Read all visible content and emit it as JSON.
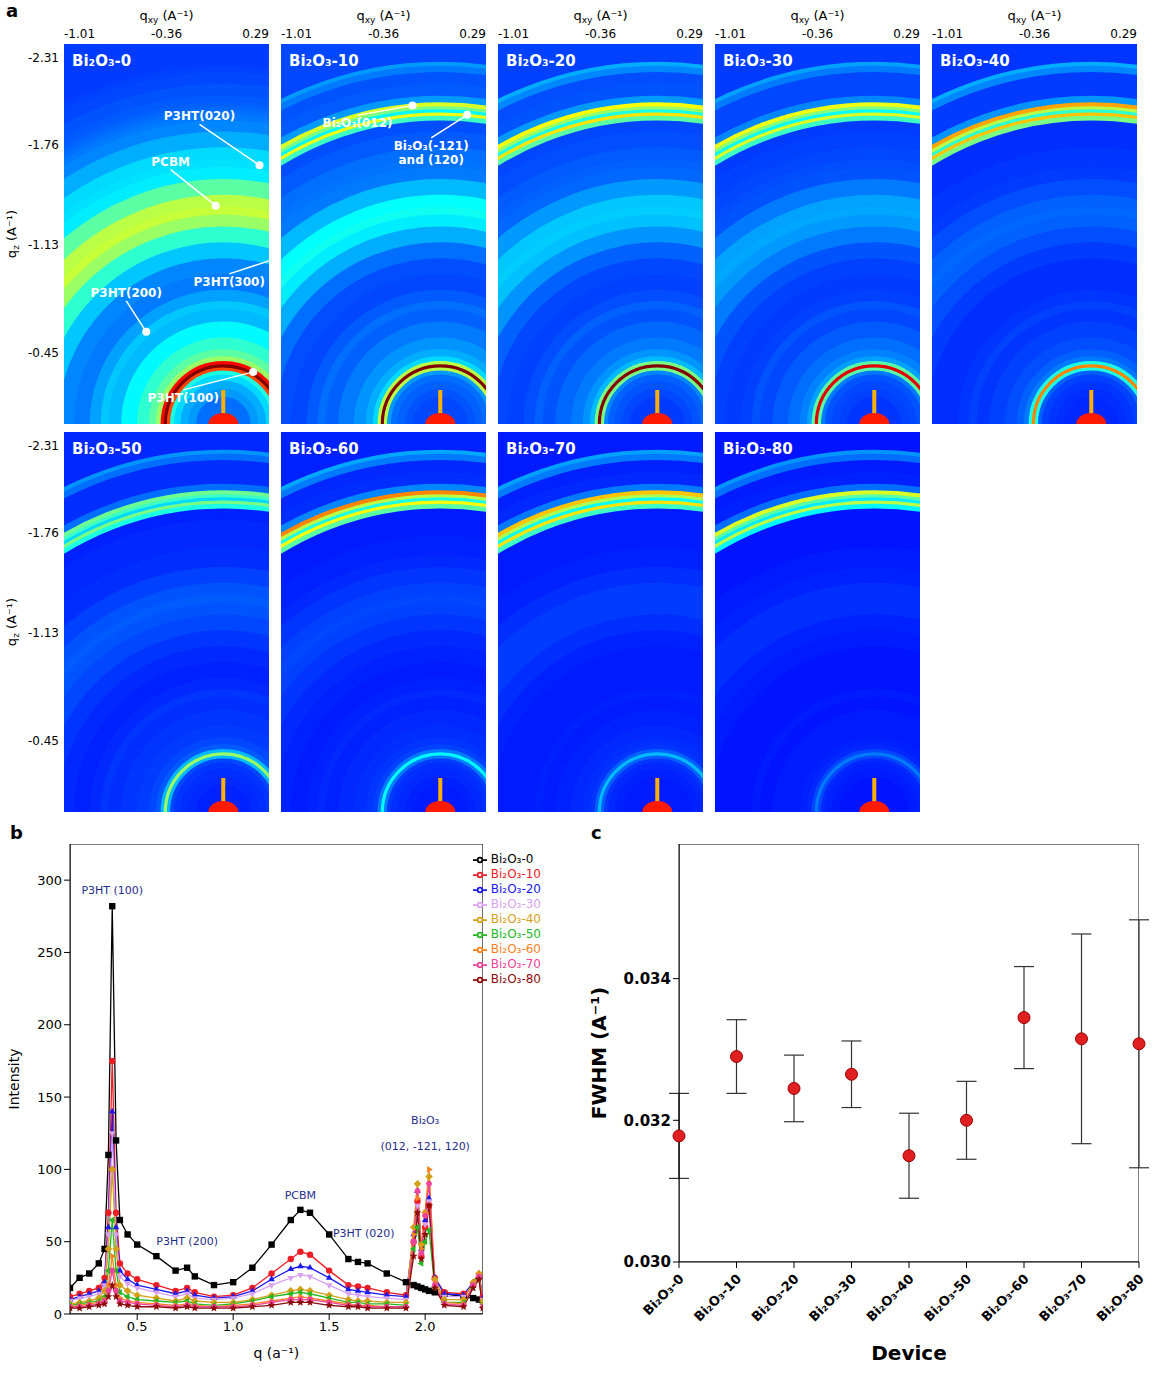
{
  "chart_data": [
    {
      "type": "image",
      "panel_label": "a",
      "panels": [
        "Bi₂O₃-0",
        "Bi₂O₃-10",
        "Bi₂O₃-20",
        "Bi₂O₃-30",
        "Bi₂O₃-40",
        "Bi₂O₃-50",
        "Bi₂O₃-60",
        "Bi₂O₃-70",
        "Bi₂O₃-80"
      ],
      "x_title": {
        "text": "q",
        "sub": "xy",
        "rest": " (A⁻¹)"
      },
      "y_title": {
        "text": "q",
        "sub": "z",
        "rest": " (A⁻¹)"
      },
      "xlim": [
        -1.01,
        0.29
      ],
      "xticks": [
        -1.01,
        -0.36,
        0.29
      ],
      "ylim": [
        -2.4,
        0
      ],
      "yticks": [
        -2.31,
        -1.76,
        -1.13,
        -0.45
      ],
      "annotations": [
        {
          "panel": "Bi₂O₃-0",
          "text": "P3HT(020)",
          "q": 1.65
        },
        {
          "panel": "Bi₂O₃-0",
          "text": "PCBM",
          "q": 1.38
        },
        {
          "panel": "Bi₂O₃-0",
          "text": "P3HT(300)",
          "q": 1.13
        },
        {
          "panel": "Bi₂O₃-0",
          "text": "P3HT(200)",
          "q": 0.76
        },
        {
          "panel": "Bi₂O₃-0",
          "text": "P3HT(100)",
          "q": 0.38
        },
        {
          "panel": "Bi₂O₃-10",
          "text": "Bi₂O₃(012)",
          "q": 2.02
        },
        {
          "panel": "Bi₂O₃-10",
          "text": "Bi₂O₃(-121) and (120)",
          "q": 1.96
        }
      ]
    },
    {
      "type": "line",
      "panel_label": "b",
      "x_label": "q (a⁻¹)",
      "y_label": "Intensity",
      "x": [
        0.15,
        0.2,
        0.25,
        0.3,
        0.33,
        0.35,
        0.37,
        0.39,
        0.41,
        0.45,
        0.5,
        0.6,
        0.7,
        0.76,
        0.8,
        0.9,
        1.0,
        1.1,
        1.2,
        1.3,
        1.35,
        1.4,
        1.5,
        1.6,
        1.65,
        1.7,
        1.8,
        1.9,
        1.94,
        1.96,
        1.98,
        2.0,
        2.02,
        2.05,
        2.1,
        2.2,
        2.25,
        2.28,
        2.3
      ],
      "series": [
        {
          "name": "Bi₂O₃-0",
          "color": "#000000",
          "marker": "square",
          "values": [
            18,
            25,
            28,
            35,
            45,
            110,
            282,
            120,
            65,
            55,
            48,
            40,
            30,
            32,
            26,
            20,
            22,
            32,
            48,
            65,
            72,
            70,
            55,
            38,
            36,
            35,
            28,
            22,
            20,
            19,
            18,
            17,
            16,
            15,
            14,
            12,
            11,
            10,
            10
          ]
        },
        {
          "name": "Bi₂O₃-10",
          "color": "#ee1c25",
          "marker": "circle",
          "values": [
            12,
            14,
            16,
            18,
            25,
            70,
            175,
            70,
            35,
            28,
            24,
            20,
            16,
            18,
            15,
            12,
            13,
            18,
            28,
            38,
            43,
            41,
            30,
            20,
            19,
            18,
            15,
            13,
            50,
            78,
            40,
            60,
            75,
            25,
            15,
            14,
            20,
            25,
            12
          ]
        },
        {
          "name": "Bi₂O₃-20",
          "color": "#1a1aee",
          "marker": "triangle",
          "values": [
            10,
            12,
            14,
            16,
            22,
            60,
            140,
            60,
            30,
            24,
            20,
            17,
            14,
            16,
            13,
            11,
            12,
            16,
            24,
            31,
            33,
            32,
            25,
            17,
            16,
            15,
            13,
            12,
            55,
            85,
            45,
            65,
            80,
            25,
            14,
            13,
            22,
            28,
            11
          ]
        },
        {
          "name": "Bi₂O₃-30",
          "color": "#d9a3f2",
          "marker": "triangle-down",
          "values": [
            9,
            11,
            12,
            14,
            20,
            55,
            125,
            55,
            26,
            21,
            18,
            15,
            12,
            14,
            11,
            10,
            11,
            14,
            20,
            25,
            27,
            26,
            20,
            14,
            13,
            12,
            11,
            10,
            50,
            75,
            42,
            62,
            78,
            22,
            12,
            12,
            20,
            26,
            10
          ]
        },
        {
          "name": "Bi₂O₃-40",
          "color": "#d4a017",
          "marker": "diamond",
          "values": [
            7,
            8,
            9,
            11,
            16,
            45,
            100,
            45,
            20,
            16,
            13,
            11,
            9,
            11,
            9,
            8,
            8,
            10,
            13,
            16,
            17,
            16,
            13,
            10,
            9,
            9,
            8,
            8,
            60,
            90,
            48,
            70,
            95,
            24,
            10,
            10,
            22,
            28,
            9
          ]
        },
        {
          "name": "Bi₂O₃-50",
          "color": "#22b822",
          "marker": "triangle-left",
          "values": [
            6,
            7,
            8,
            9,
            12,
            30,
            65,
            30,
            15,
            12,
            10,
            9,
            8,
            9,
            7,
            6,
            7,
            9,
            12,
            14,
            15,
            14,
            11,
            8,
            8,
            7,
            7,
            6,
            45,
            60,
            35,
            50,
            58,
            18,
            8,
            8,
            18,
            24,
            7
          ]
        },
        {
          "name": "Bi₂O₃-60",
          "color": "#f7821e",
          "marker": "triangle-right",
          "values": [
            5,
            6,
            7,
            8,
            10,
            20,
            40,
            20,
            11,
            9,
            8,
            7,
            6,
            7,
            6,
            5,
            6,
            7,
            9,
            11,
            12,
            11,
            9,
            7,
            6,
            6,
            5,
            5,
            55,
            80,
            45,
            70,
            100,
            22,
            8,
            7,
            20,
            27,
            6
          ]
        },
        {
          "name": "Bi₂O₃-70",
          "color": "#f0449a",
          "marker": "hexagon",
          "values": [
            5,
            5,
            6,
            7,
            9,
            16,
            30,
            16,
            9,
            8,
            7,
            6,
            5,
            6,
            5,
            5,
            5,
            6,
            8,
            10,
            10,
            10,
            8,
            6,
            6,
            5,
            5,
            5,
            50,
            85,
            42,
            68,
            90,
            20,
            7,
            6,
            20,
            26,
            5
          ]
        },
        {
          "name": "Bi₂O₃-80",
          "color": "#8b0a0a",
          "marker": "star",
          "values": [
            4,
            4,
            5,
            6,
            7,
            12,
            20,
            12,
            7,
            6,
            5,
            5,
            4,
            5,
            4,
            4,
            4,
            5,
            6,
            8,
            8,
            8,
            6,
            5,
            5,
            4,
            4,
            4,
            40,
            70,
            38,
            55,
            75,
            18,
            6,
            5,
            18,
            24,
            4
          ]
        }
      ],
      "xlim": [
        0.15,
        2.3
      ],
      "xticks": [
        0.5,
        {
          "value": 1,
          "label": "1.0"
        },
        1.5,
        {
          "value": 2,
          "label": "2.0"
        }
      ],
      "ylim": [
        0,
        325
      ],
      "yticks": [
        0,
        50,
        100,
        150,
        200,
        250,
        300
      ],
      "legend": "upper right",
      "annotations": [
        {
          "text": "P3HT (100)",
          "x": 0.37,
          "y": 287
        },
        {
          "text": "P3HT (200)",
          "x": 0.76,
          "y": 44
        },
        {
          "text": "PCBM",
          "x": 1.35,
          "y": 76
        },
        {
          "text": "P3HT (020)",
          "x": 1.68,
          "y": 50
        },
        {
          "text": "Bi₂O₃",
          "x": 2.0,
          "y": 128
        },
        {
          "text": "(012, -121, 120)",
          "x": 2.0,
          "y": 110
        }
      ]
    },
    {
      "type": "scatter",
      "panel_label": "c",
      "x_label": "Device",
      "y_label": "FWHM (A⁻¹)",
      "categories": [
        "Bi₂O₃-0",
        "Bi₂O₃-10",
        "Bi₂O₃-20",
        "Bi₂O₃-30",
        "Bi₂O₃-40",
        "Bi₂O₃-50",
        "Bi₂O₃-60",
        "Bi₂O₃-70",
        "Bi₂O₃-80"
      ],
      "values": [
        0.03178,
        0.0329,
        0.03245,
        0.03265,
        0.0315,
        0.032,
        0.03345,
        0.03315,
        0.03308
      ],
      "errors": [
        0.0006,
        0.00052,
        0.00047,
        0.00047,
        0.0006,
        0.00055,
        0.00072,
        0.00148,
        0.00175
      ],
      "color": "#e02020",
      "ylim": [
        0.03,
        0.0359
      ],
      "yticks": [
        {
          "value": 0.03,
          "label": "0.030"
        },
        0.032,
        0.034
      ]
    }
  ]
}
